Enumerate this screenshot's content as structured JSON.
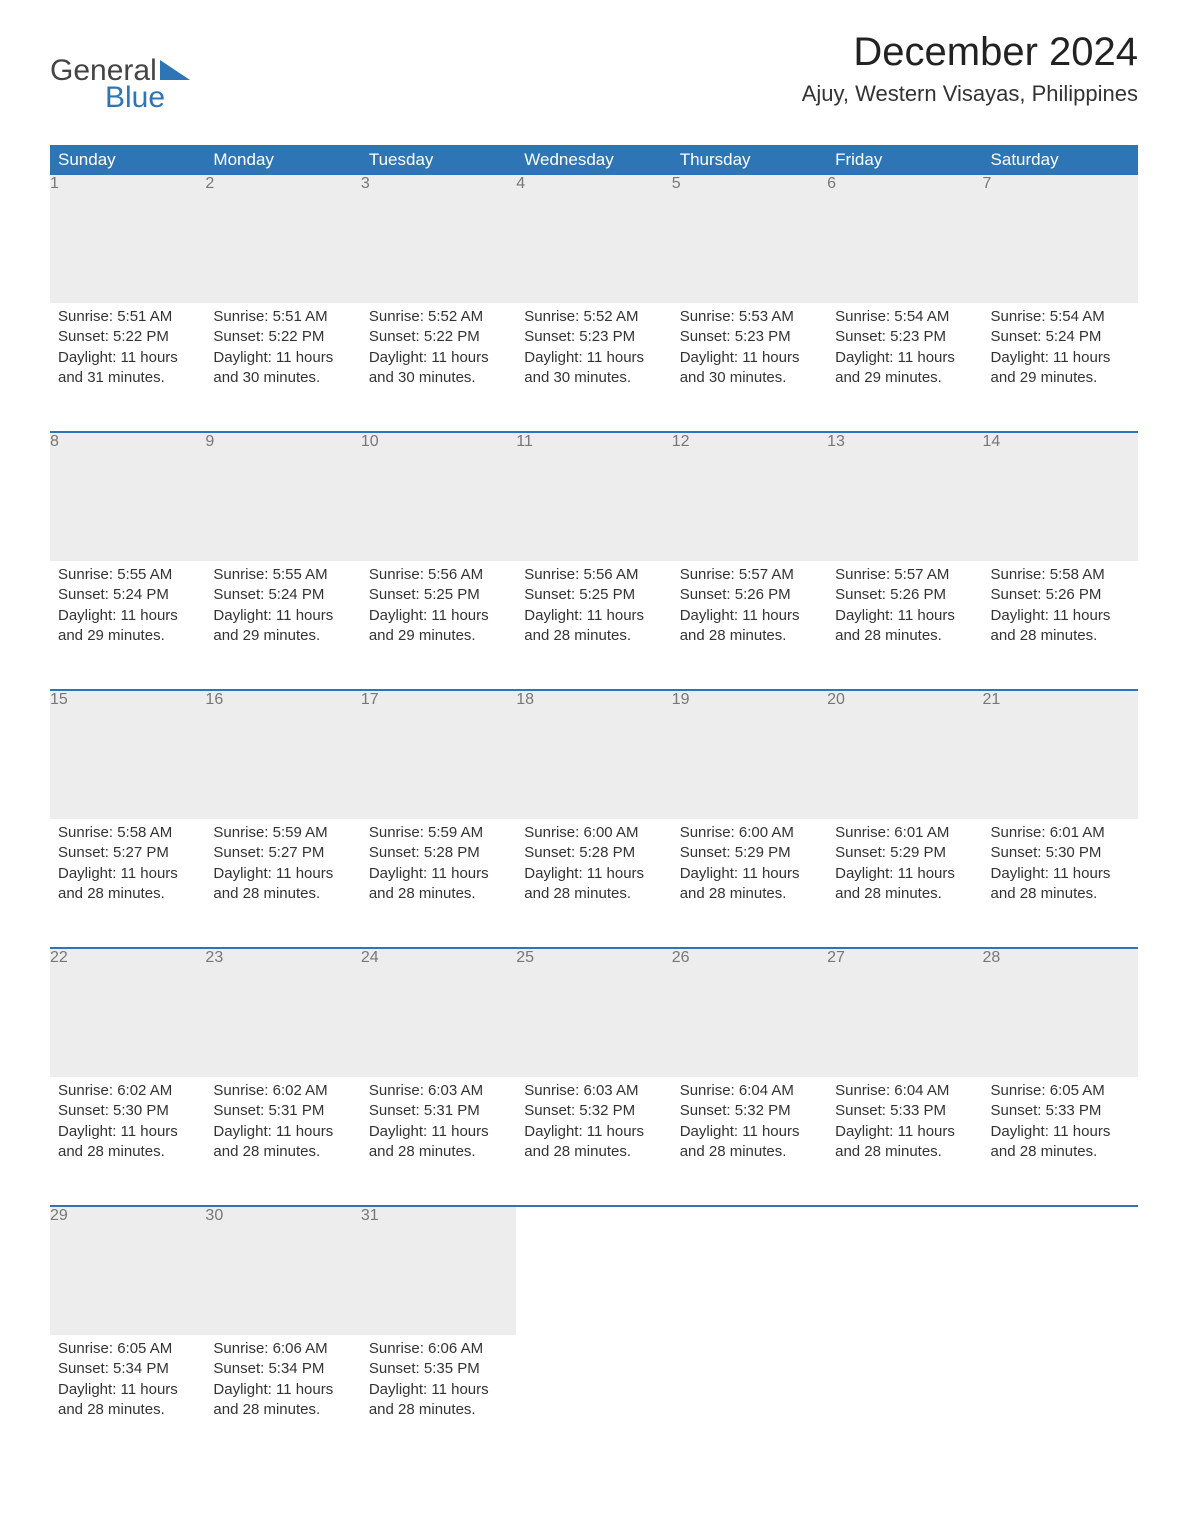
{
  "colors": {
    "header_bg": "#2e75b6",
    "header_text": "#ffffff",
    "daynum_bg": "#ededed",
    "daynum_text": "#777777",
    "body_text": "#333333",
    "logo_general": "#444444",
    "logo_blue": "#2e75b6"
  },
  "logo": {
    "line1": "General",
    "line2": "Blue"
  },
  "title": "December 2024",
  "location": "Ajuy, Western Visayas, Philippines",
  "weekdays": [
    "Sunday",
    "Monday",
    "Tuesday",
    "Wednesday",
    "Thursday",
    "Friday",
    "Saturday"
  ],
  "weeks": [
    [
      {
        "n": "1",
        "sr": "Sunrise: 5:51 AM",
        "ss": "Sunset: 5:22 PM",
        "d1": "Daylight: 11 hours",
        "d2": "and 31 minutes."
      },
      {
        "n": "2",
        "sr": "Sunrise: 5:51 AM",
        "ss": "Sunset: 5:22 PM",
        "d1": "Daylight: 11 hours",
        "d2": "and 30 minutes."
      },
      {
        "n": "3",
        "sr": "Sunrise: 5:52 AM",
        "ss": "Sunset: 5:22 PM",
        "d1": "Daylight: 11 hours",
        "d2": "and 30 minutes."
      },
      {
        "n": "4",
        "sr": "Sunrise: 5:52 AM",
        "ss": "Sunset: 5:23 PM",
        "d1": "Daylight: 11 hours",
        "d2": "and 30 minutes."
      },
      {
        "n": "5",
        "sr": "Sunrise: 5:53 AM",
        "ss": "Sunset: 5:23 PM",
        "d1": "Daylight: 11 hours",
        "d2": "and 30 minutes."
      },
      {
        "n": "6",
        "sr": "Sunrise: 5:54 AM",
        "ss": "Sunset: 5:23 PM",
        "d1": "Daylight: 11 hours",
        "d2": "and 29 minutes."
      },
      {
        "n": "7",
        "sr": "Sunrise: 5:54 AM",
        "ss": "Sunset: 5:24 PM",
        "d1": "Daylight: 11 hours",
        "d2": "and 29 minutes."
      }
    ],
    [
      {
        "n": "8",
        "sr": "Sunrise: 5:55 AM",
        "ss": "Sunset: 5:24 PM",
        "d1": "Daylight: 11 hours",
        "d2": "and 29 minutes."
      },
      {
        "n": "9",
        "sr": "Sunrise: 5:55 AM",
        "ss": "Sunset: 5:24 PM",
        "d1": "Daylight: 11 hours",
        "d2": "and 29 minutes."
      },
      {
        "n": "10",
        "sr": "Sunrise: 5:56 AM",
        "ss": "Sunset: 5:25 PM",
        "d1": "Daylight: 11 hours",
        "d2": "and 29 minutes."
      },
      {
        "n": "11",
        "sr": "Sunrise: 5:56 AM",
        "ss": "Sunset: 5:25 PM",
        "d1": "Daylight: 11 hours",
        "d2": "and 28 minutes."
      },
      {
        "n": "12",
        "sr": "Sunrise: 5:57 AM",
        "ss": "Sunset: 5:26 PM",
        "d1": "Daylight: 11 hours",
        "d2": "and 28 minutes."
      },
      {
        "n": "13",
        "sr": "Sunrise: 5:57 AM",
        "ss": "Sunset: 5:26 PM",
        "d1": "Daylight: 11 hours",
        "d2": "and 28 minutes."
      },
      {
        "n": "14",
        "sr": "Sunrise: 5:58 AM",
        "ss": "Sunset: 5:26 PM",
        "d1": "Daylight: 11 hours",
        "d2": "and 28 minutes."
      }
    ],
    [
      {
        "n": "15",
        "sr": "Sunrise: 5:58 AM",
        "ss": "Sunset: 5:27 PM",
        "d1": "Daylight: 11 hours",
        "d2": "and 28 minutes."
      },
      {
        "n": "16",
        "sr": "Sunrise: 5:59 AM",
        "ss": "Sunset: 5:27 PM",
        "d1": "Daylight: 11 hours",
        "d2": "and 28 minutes."
      },
      {
        "n": "17",
        "sr": "Sunrise: 5:59 AM",
        "ss": "Sunset: 5:28 PM",
        "d1": "Daylight: 11 hours",
        "d2": "and 28 minutes."
      },
      {
        "n": "18",
        "sr": "Sunrise: 6:00 AM",
        "ss": "Sunset: 5:28 PM",
        "d1": "Daylight: 11 hours",
        "d2": "and 28 minutes."
      },
      {
        "n": "19",
        "sr": "Sunrise: 6:00 AM",
        "ss": "Sunset: 5:29 PM",
        "d1": "Daylight: 11 hours",
        "d2": "and 28 minutes."
      },
      {
        "n": "20",
        "sr": "Sunrise: 6:01 AM",
        "ss": "Sunset: 5:29 PM",
        "d1": "Daylight: 11 hours",
        "d2": "and 28 minutes."
      },
      {
        "n": "21",
        "sr": "Sunrise: 6:01 AM",
        "ss": "Sunset: 5:30 PM",
        "d1": "Daylight: 11 hours",
        "d2": "and 28 minutes."
      }
    ],
    [
      {
        "n": "22",
        "sr": "Sunrise: 6:02 AM",
        "ss": "Sunset: 5:30 PM",
        "d1": "Daylight: 11 hours",
        "d2": "and 28 minutes."
      },
      {
        "n": "23",
        "sr": "Sunrise: 6:02 AM",
        "ss": "Sunset: 5:31 PM",
        "d1": "Daylight: 11 hours",
        "d2": "and 28 minutes."
      },
      {
        "n": "24",
        "sr": "Sunrise: 6:03 AM",
        "ss": "Sunset: 5:31 PM",
        "d1": "Daylight: 11 hours",
        "d2": "and 28 minutes."
      },
      {
        "n": "25",
        "sr": "Sunrise: 6:03 AM",
        "ss": "Sunset: 5:32 PM",
        "d1": "Daylight: 11 hours",
        "d2": "and 28 minutes."
      },
      {
        "n": "26",
        "sr": "Sunrise: 6:04 AM",
        "ss": "Sunset: 5:32 PM",
        "d1": "Daylight: 11 hours",
        "d2": "and 28 minutes."
      },
      {
        "n": "27",
        "sr": "Sunrise: 6:04 AM",
        "ss": "Sunset: 5:33 PM",
        "d1": "Daylight: 11 hours",
        "d2": "and 28 minutes."
      },
      {
        "n": "28",
        "sr": "Sunrise: 6:05 AM",
        "ss": "Sunset: 5:33 PM",
        "d1": "Daylight: 11 hours",
        "d2": "and 28 minutes."
      }
    ],
    [
      {
        "n": "29",
        "sr": "Sunrise: 6:05 AM",
        "ss": "Sunset: 5:34 PM",
        "d1": "Daylight: 11 hours",
        "d2": "and 28 minutes."
      },
      {
        "n": "30",
        "sr": "Sunrise: 6:06 AM",
        "ss": "Sunset: 5:34 PM",
        "d1": "Daylight: 11 hours",
        "d2": "and 28 minutes."
      },
      {
        "n": "31",
        "sr": "Sunrise: 6:06 AM",
        "ss": "Sunset: 5:35 PM",
        "d1": "Daylight: 11 hours",
        "d2": "and 28 minutes."
      },
      null,
      null,
      null,
      null
    ]
  ]
}
